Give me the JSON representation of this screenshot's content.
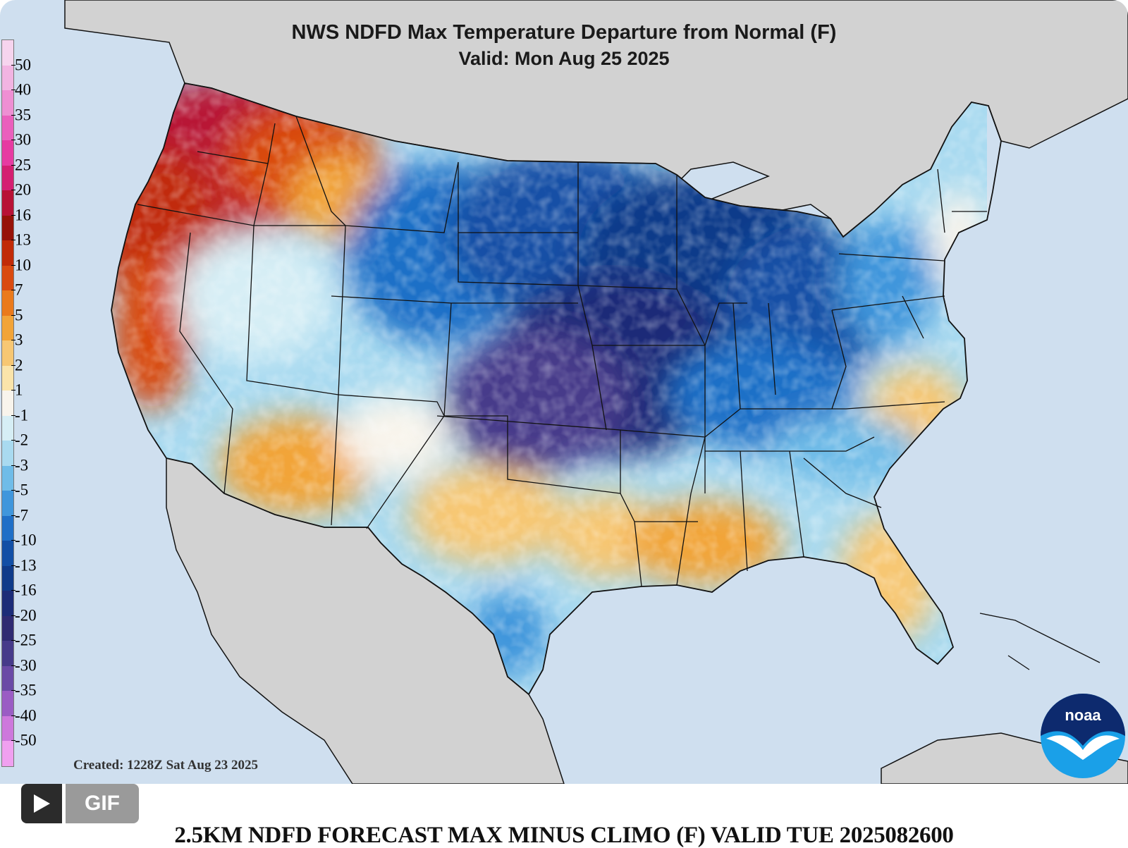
{
  "map": {
    "title": "NWS NDFD Max Temperature Departure from Normal (F)",
    "subtitle": "Valid: Mon Aug 25 2025",
    "created": "Created: 1228Z Sat Aug 23 2025",
    "logo_text": "noaa",
    "legend": {
      "labels": [
        "50",
        "40",
        "35",
        "30",
        "25",
        "20",
        "16",
        "13",
        "10",
        "7",
        "5",
        "3",
        "2",
        "1",
        "-1",
        "-2",
        "-3",
        "-5",
        "-7",
        "-10",
        "-13",
        "-16",
        "-20",
        "-25",
        "-30",
        "-35",
        "-40",
        "-50"
      ],
      "colors": [
        "#f6d4ee",
        "#f2b4e2",
        "#ee8fd3",
        "#ea5fbd",
        "#e63ba2",
        "#d41f72",
        "#b81236",
        "#961208",
        "#c12a07",
        "#d94a10",
        "#ea7a1c",
        "#f2a438",
        "#f7c773",
        "#fae4aa",
        "#f8f4ec",
        "#d6eef5",
        "#a9daf0",
        "#6fbce8",
        "#3f96dc",
        "#1f6fc7",
        "#124fa6",
        "#0f3b8a",
        "#1c2c78",
        "#2f2a72",
        "#463a8a",
        "#6a4aa6",
        "#9a5cc4",
        "#cd78dc",
        "#f0a0f0"
      ]
    },
    "colors": {
      "ocean": "#cfdfef",
      "land_outside": "#d2d2d2",
      "border": "#111111"
    }
  },
  "controls": {
    "play_icon": "play-icon",
    "gif_label": "GIF"
  },
  "caption": "2.5KM NDFD FORECAST MAX MINUS CLIMO (F) VALID TUE 2025082600"
}
